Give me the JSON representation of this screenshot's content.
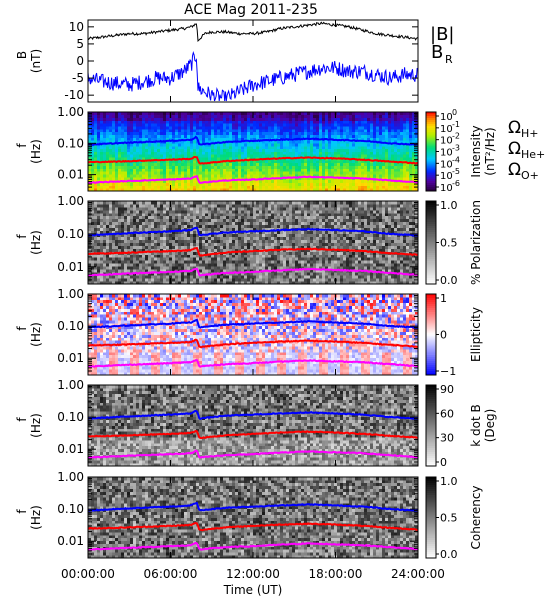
{
  "title": "ACE Mag 2011-235",
  "xaxis": {
    "label": "Time (UT)",
    "range_hours": [
      0,
      24
    ],
    "ticks": [
      0,
      6,
      12,
      18,
      24
    ],
    "tick_labels": [
      "00:00:00",
      "06:00:00",
      "12:00:00",
      "18:00:00",
      "24:00:00"
    ]
  },
  "colors": {
    "b_total": "#000000",
    "b_r": "#0000ff",
    "cyclotron_h": "#0000ff",
    "cyclotron_he": "#ff0000",
    "cyclotron_o": "#ff00ff"
  },
  "cyclotron_legend": [
    {
      "base": "Ω",
      "sub": "H+",
      "color": "#0000ff"
    },
    {
      "base": "Ω",
      "sub": "He+",
      "color": "#ff0000"
    },
    {
      "base": "Ω",
      "sub": "O+",
      "color": "#ff00ff"
    }
  ],
  "chart_data": [
    {
      "type": "line",
      "name": "field",
      "ylabel": "B",
      "yunit": "(nT)",
      "ylim": [
        -12,
        12
      ],
      "yticks": [
        -10,
        -5,
        0,
        5,
        10
      ],
      "legend": [
        {
          "label": "|B|",
          "color": "#000000",
          "sub": ""
        },
        {
          "label": "B",
          "color": "#0000ff",
          "sub": "R"
        }
      ],
      "series": [
        {
          "name": "|B|",
          "x_hours": [
            0,
            1,
            2,
            3,
            4,
            5,
            6,
            7,
            7.5,
            7.9,
            8,
            8.5,
            9,
            10,
            11,
            12,
            13,
            14,
            15,
            16,
            17,
            18,
            19,
            20,
            21,
            22,
            23,
            24
          ],
          "values": [
            6.5,
            7,
            7.5,
            8,
            8,
            8.5,
            9,
            9.5,
            10,
            11,
            6,
            8,
            8.5,
            8.5,
            8,
            8,
            8.5,
            9.5,
            10,
            10.5,
            11,
            10.5,
            10,
            9,
            8,
            7.5,
            7,
            6.5
          ]
        },
        {
          "name": "B_R",
          "x_hours": [
            0,
            1,
            2,
            3,
            4,
            5,
            6,
            7,
            7.5,
            7.9,
            8,
            8.5,
            9,
            10,
            11,
            12,
            13,
            14,
            15,
            16,
            17,
            18,
            19,
            20,
            21,
            22,
            23,
            24
          ],
          "values": [
            -5,
            -6,
            -6.5,
            -7,
            -6,
            -5,
            -5,
            -3,
            -1,
            2,
            -8,
            -9,
            -10,
            -11,
            -9,
            -7,
            -6,
            -5,
            -4,
            -3,
            -2,
            -2,
            -3,
            -3,
            -4,
            -5,
            -4,
            -4
          ]
        }
      ]
    },
    {
      "type": "heatmap",
      "name": "intensity",
      "ylabel": "f",
      "yunit": "(Hz)",
      "ylog": true,
      "ylim": [
        0.003,
        1.0
      ],
      "yticks": [
        0.01,
        0.1,
        1.0
      ],
      "ytick_labels": [
        "0.01",
        "0.10",
        "1.00"
      ],
      "colorbar": {
        "label": "Intensity",
        "unit": "(nT²/Hz)",
        "scale": "rainbow",
        "ticks": [
          {
            "base": "10",
            "exp": "0"
          },
          {
            "base": "10",
            "exp": "-1"
          },
          {
            "base": "10",
            "exp": "-2"
          },
          {
            "base": "10",
            "exp": "-3"
          },
          {
            "base": "10",
            "exp": "-4"
          },
          {
            "base": "10",
            "exp": "-5"
          },
          {
            "base": "10",
            "exp": "-6"
          }
        ]
      }
    },
    {
      "type": "heatmap",
      "name": "polarization",
      "ylabel": "f",
      "yunit": "(Hz)",
      "ylog": true,
      "ylim": [
        0.003,
        1.0
      ],
      "yticks": [
        0.01,
        0.1,
        1.0
      ],
      "ytick_labels": [
        "0.01",
        "0.10",
        "1.00"
      ],
      "colorbar": {
        "label": "% Polarization",
        "unit": "",
        "scale": "gray",
        "ticks": [
          {
            "v": "1.0"
          },
          {
            "v": "0.5"
          },
          {
            "v": "0.0"
          }
        ]
      }
    },
    {
      "type": "heatmap",
      "name": "ellipticity",
      "ylabel": "f",
      "yunit": "(Hz)",
      "ylog": true,
      "ylim": [
        0.003,
        1.0
      ],
      "yticks": [
        0.01,
        0.1,
        1.0
      ],
      "ytick_labels": [
        "0.01",
        "0.10",
        "1.00"
      ],
      "colorbar": {
        "label": "Ellipticity",
        "unit": "",
        "scale": "bwr",
        "ticks": [
          {
            "v": "1"
          },
          {
            "v": "0"
          },
          {
            "v": "−1"
          }
        ]
      }
    },
    {
      "type": "heatmap",
      "name": "kdotb",
      "ylabel": "f",
      "yunit": "(Hz)",
      "ylog": true,
      "ylim": [
        0.003,
        1.0
      ],
      "yticks": [
        0.01,
        0.1,
        1.0
      ],
      "ytick_labels": [
        "0.01",
        "0.10",
        "1.00"
      ],
      "colorbar": {
        "label": "k dot B",
        "unit": "(Deg)",
        "scale": "gray",
        "ticks": [
          {
            "v": "90"
          },
          {
            "v": "60"
          },
          {
            "v": "30"
          },
          {
            "v": "0"
          }
        ]
      }
    },
    {
      "type": "heatmap",
      "name": "coherency",
      "ylabel": "f",
      "yunit": "(Hz)",
      "ylog": true,
      "ylim": [
        0.003,
        1.0
      ],
      "yticks": [
        0.01,
        0.1,
        1.0
      ],
      "ytick_labels": [
        "0.01",
        "0.10",
        "1.00"
      ],
      "colorbar": {
        "label": "Coherency",
        "unit": "",
        "scale": "gray",
        "ticks": [
          {
            "v": "1.0"
          },
          {
            "v": "0.5"
          },
          {
            "v": "0.0"
          }
        ]
      }
    }
  ],
  "cyclotron_lines": {
    "x_hours": [
      0,
      2,
      4,
      6,
      7.5,
      7.9,
      8.1,
      10,
      12,
      14,
      16,
      18,
      20,
      22,
      24
    ],
    "h_plus_hz": [
      0.09,
      0.1,
      0.11,
      0.12,
      0.13,
      0.16,
      0.09,
      0.11,
      0.12,
      0.13,
      0.14,
      0.13,
      0.12,
      0.1,
      0.09
    ],
    "he_plus_hz": [
      0.025,
      0.026,
      0.028,
      0.03,
      0.032,
      0.038,
      0.022,
      0.027,
      0.03,
      0.033,
      0.035,
      0.033,
      0.03,
      0.026,
      0.023
    ],
    "o_plus_hz": [
      0.0055,
      0.006,
      0.0065,
      0.007,
      0.0075,
      0.009,
      0.0055,
      0.0065,
      0.007,
      0.0078,
      0.0085,
      0.008,
      0.0075,
      0.0065,
      0.0057
    ]
  }
}
